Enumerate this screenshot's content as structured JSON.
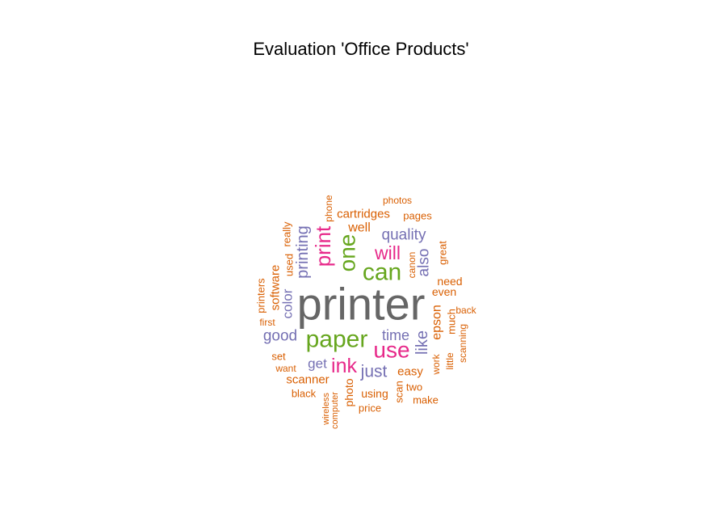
{
  "chart_data": {
    "type": "wordcloud",
    "title": "Evaluation 'Office Products'",
    "palette": {
      "tier1": "#666666",
      "tier2": "#66a61e",
      "tier3": "#e7298a",
      "tier4": "#7570b3",
      "tier5": "#d95f02"
    },
    "words": [
      {
        "word": "printer",
        "tier": 1,
        "rotated": false
      },
      {
        "word": "paper",
        "tier": 2,
        "rotated": false
      },
      {
        "word": "can",
        "tier": 2,
        "rotated": false
      },
      {
        "word": "one",
        "tier": 2,
        "rotated": true
      },
      {
        "word": "use",
        "tier": 3,
        "rotated": false
      },
      {
        "word": "print",
        "tier": 3,
        "rotated": true
      },
      {
        "word": "ink",
        "tier": 3,
        "rotated": false
      },
      {
        "word": "will",
        "tier": 3,
        "rotated": false
      },
      {
        "word": "just",
        "tier": 4,
        "rotated": false
      },
      {
        "word": "printing",
        "tier": 4,
        "rotated": true
      },
      {
        "word": "quality",
        "tier": 4,
        "rotated": false
      },
      {
        "word": "like",
        "tier": 4,
        "rotated": true
      },
      {
        "word": "also",
        "tier": 4,
        "rotated": true
      },
      {
        "word": "good",
        "tier": 4,
        "rotated": false
      },
      {
        "word": "time",
        "tier": 4,
        "rotated": false
      },
      {
        "word": "color",
        "tier": 4,
        "rotated": true
      },
      {
        "word": "get",
        "tier": 4,
        "rotated": false
      },
      {
        "word": "epson",
        "tier": 5,
        "rotated": true
      },
      {
        "word": "scanner",
        "tier": 5,
        "rotated": false
      },
      {
        "word": "easy",
        "tier": 5,
        "rotated": false
      },
      {
        "word": "software",
        "tier": 5,
        "rotated": true
      },
      {
        "word": "photo",
        "tier": 5,
        "rotated": true
      },
      {
        "word": "well",
        "tier": 5,
        "rotated": false
      },
      {
        "word": "cartridges",
        "tier": 5,
        "rotated": false
      },
      {
        "word": "need",
        "tier": 5,
        "rotated": false
      },
      {
        "word": "even",
        "tier": 5,
        "rotated": false
      },
      {
        "word": "using",
        "tier": 5,
        "rotated": false
      },
      {
        "word": "much",
        "tier": 5,
        "rotated": true
      },
      {
        "word": "great",
        "tier": 5,
        "rotated": true
      },
      {
        "word": "used",
        "tier": 5,
        "rotated": true
      },
      {
        "word": "printers",
        "tier": 5,
        "rotated": true
      },
      {
        "word": "really",
        "tier": 5,
        "rotated": true
      },
      {
        "word": "set",
        "tier": 5,
        "rotated": false
      },
      {
        "word": "black",
        "tier": 5,
        "rotated": false
      },
      {
        "word": "scan",
        "tier": 5,
        "rotated": true
      },
      {
        "word": "two",
        "tier": 5,
        "rotated": false
      },
      {
        "word": "make",
        "tier": 5,
        "rotated": false
      },
      {
        "word": "pages",
        "tier": 5,
        "rotated": false
      },
      {
        "word": "price",
        "tier": 5,
        "rotated": false
      },
      {
        "word": "first",
        "tier": 5,
        "rotated": false
      },
      {
        "word": "want",
        "tier": 5,
        "rotated": false
      },
      {
        "word": "work",
        "tier": 5,
        "rotated": true
      },
      {
        "word": "little",
        "tier": 5,
        "rotated": true
      },
      {
        "word": "scanning",
        "tier": 5,
        "rotated": true
      },
      {
        "word": "back",
        "tier": 5,
        "rotated": false
      },
      {
        "word": "canon",
        "tier": 5,
        "rotated": true
      },
      {
        "word": "phone",
        "tier": 5,
        "rotated": true
      },
      {
        "word": "photos",
        "tier": 5,
        "rotated": false
      },
      {
        "word": "wireless",
        "tier": 5,
        "rotated": true
      },
      {
        "word": "computer",
        "tier": 5,
        "rotated": true
      }
    ]
  }
}
